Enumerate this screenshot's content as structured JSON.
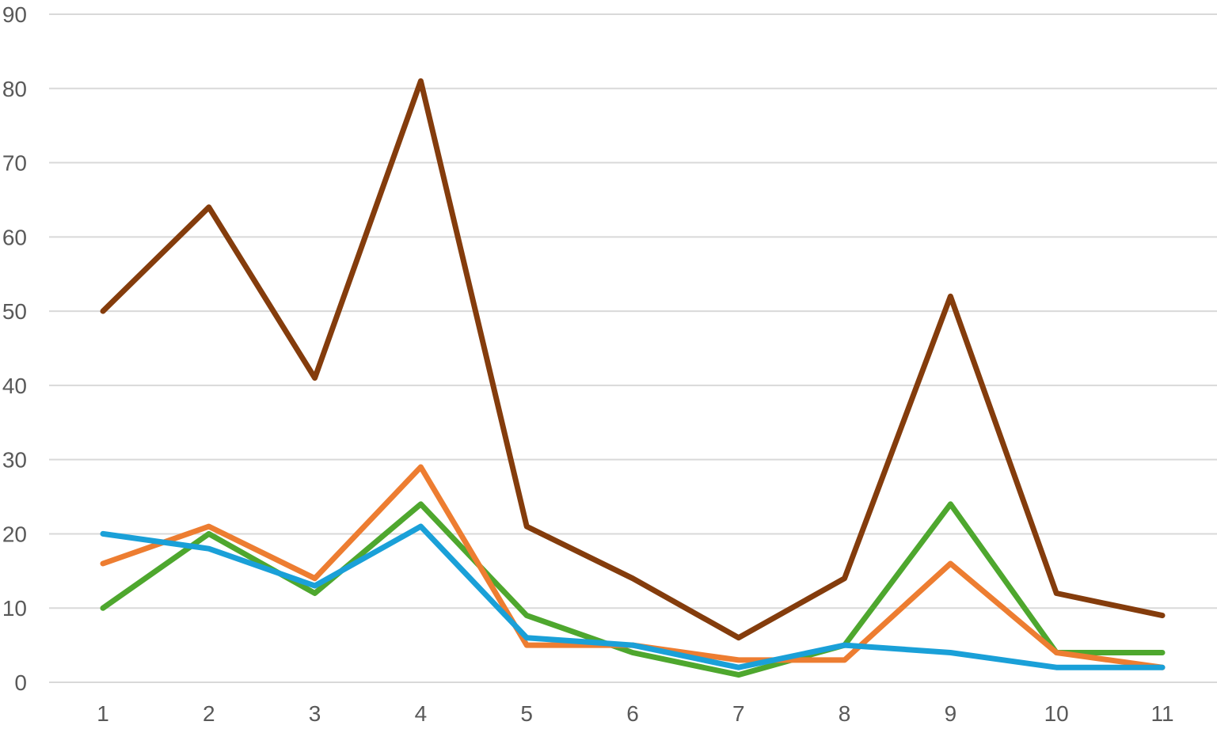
{
  "chart_data": {
    "type": "line",
    "title": "",
    "xlabel": "",
    "ylabel": "",
    "categories": [
      "1",
      "2",
      "3",
      "4",
      "5",
      "6",
      "7",
      "8",
      "9",
      "10",
      "11"
    ],
    "ylim": [
      0,
      90
    ],
    "yticks": [
      "0",
      "10",
      "20",
      "30",
      "40",
      "50",
      "60",
      "70",
      "80",
      "90"
    ],
    "grid": true,
    "legend": "none",
    "series": [
      {
        "color": "#1aa0d8",
        "values": [
          20,
          18,
          13,
          21,
          6,
          5,
          2,
          5,
          4,
          2,
          2
        ]
      },
      {
        "color": "#ed7d31",
        "values": [
          16,
          21,
          14,
          29,
          5,
          5,
          3,
          3,
          16,
          4,
          2
        ]
      },
      {
        "color": "#843c0c",
        "values": [
          50,
          64,
          41,
          81,
          21,
          14,
          6,
          14,
          52,
          12,
          9
        ]
      },
      {
        "color": "#4ea72e",
        "values": [
          10,
          20,
          12,
          24,
          9,
          4,
          1,
          5,
          24,
          4,
          4
        ]
      }
    ]
  }
}
